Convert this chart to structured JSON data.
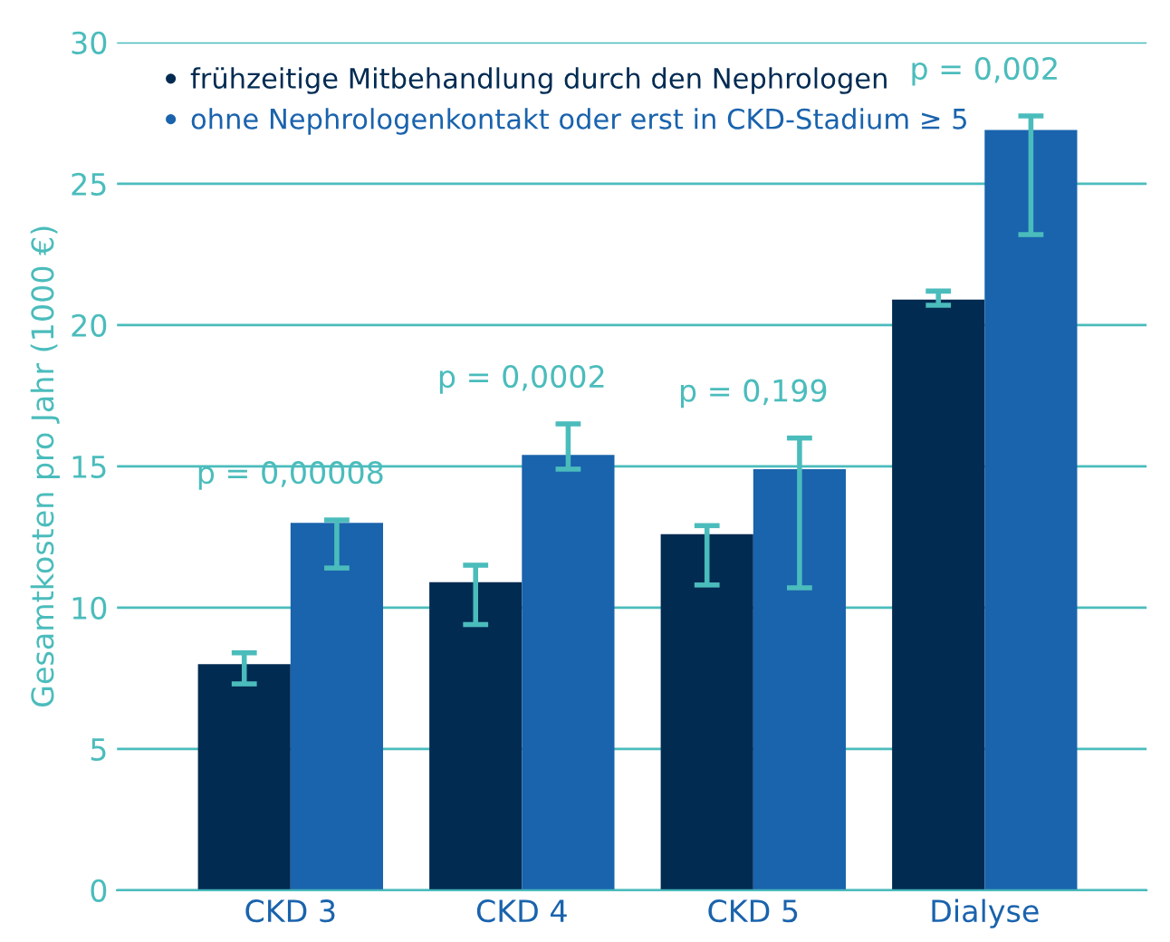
{
  "chart_data": {
    "type": "bar",
    "ylabel": "Gesamtkosten pro Jahr (1000 €)",
    "categories": [
      "CKD 3",
      "CKD 4",
      "CKD 5",
      "Dialyse"
    ],
    "series": [
      {
        "name": "frühzeitige Mitbehandlung durch den Nephrologen",
        "color": "#022b52",
        "values": [
          8.0,
          10.9,
          12.6,
          20.9
        ],
        "errors": [
          [
            7.3,
            8.4
          ],
          [
            9.4,
            11.5
          ],
          [
            10.8,
            12.9
          ],
          [
            20.7,
            21.2
          ]
        ]
      },
      {
        "name": "ohne Nephrologenkontakt oder erst in CKD-Stadium ≥ 5",
        "color": "#1a63ad",
        "values": [
          13.0,
          15.4,
          14.9,
          26.9
        ],
        "errors": [
          [
            11.4,
            13.1
          ],
          [
            14.9,
            16.5
          ],
          [
            10.7,
            16.0
          ],
          [
            23.2,
            27.4
          ]
        ]
      }
    ],
    "annotations": [
      "p = 0,00008",
      "p = 0,0002",
      "p = 0,199",
      "p = 0,002"
    ],
    "ylim": [
      0,
      30
    ],
    "yticks": [
      0,
      5,
      10,
      15,
      20,
      25,
      30
    ],
    "grid": "y",
    "legend": "top left"
  }
}
